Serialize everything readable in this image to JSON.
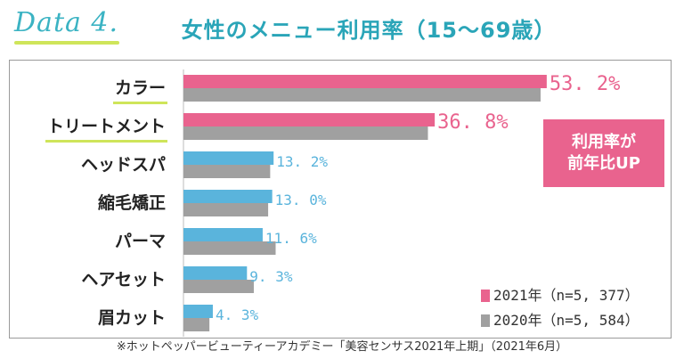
{
  "header": {
    "tag": "Data 4.",
    "title": "女性のメニュー利用率（15〜69歳）"
  },
  "badge": {
    "line1": "利用率が",
    "line2": "前年比UP"
  },
  "footnote": "※ホットペッパービューティーアカデミー「美容センサス2021年上期」（2021年6月）",
  "colors": {
    "s2021_top": "#e9638e",
    "s2021_other": "#5ab4dc",
    "s2020": "#a0a0a0",
    "value_top": "#e9638e",
    "value_other": "#5ab4dc",
    "highlight": "#cfe55a"
  },
  "chart_data": {
    "type": "bar",
    "orientation": "horizontal",
    "categories": [
      "カラー",
      "トリートメント",
      "ヘッドスパ",
      "縮毛矯正",
      "パーマ",
      "ヘアセット",
      "眉カット"
    ],
    "value_labels": [
      "53. 2%",
      "36. 8%",
      "13. 2%",
      "13. 0%",
      "11. 6%",
      "9. 3%",
      "4. 3%"
    ],
    "series": [
      {
        "name": "2021年（n=5, 377）",
        "values": [
          53.2,
          36.8,
          13.2,
          13.0,
          11.6,
          9.3,
          4.3
        ]
      },
      {
        "name": "2020年（n=5, 584）",
        "values": [
          52.3,
          35.8,
          12.7,
          12.4,
          13.5,
          10.3,
          3.8
        ]
      }
    ],
    "xlim": [
      0,
      60
    ],
    "highlighted_categories": [
      "カラー",
      "トリートメント"
    ],
    "legend_position": "bottom-right"
  }
}
